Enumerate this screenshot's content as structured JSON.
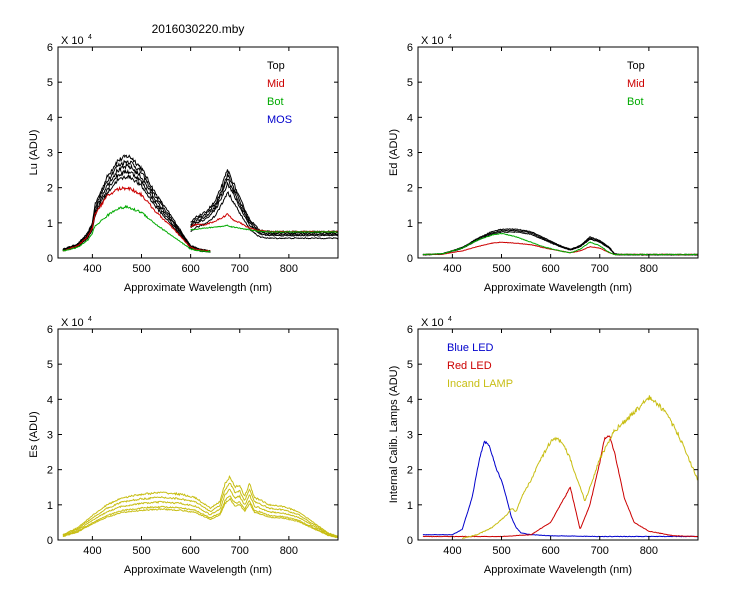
{
  "figure_title": "2016030220.mby",
  "chart_data": [
    {
      "type": "line",
      "ylabel": "Lu (ADU)",
      "xlabel": "Approximate Wavelength (nm)",
      "multiplier": "X 10",
      "exponent": "4",
      "xlim": [
        330,
        900
      ],
      "ylim": [
        0,
        6
      ],
      "xticks": [
        400,
        500,
        600,
        700,
        800
      ],
      "yticks": [
        0,
        1,
        2,
        3,
        4,
        5,
        6
      ],
      "legend": [
        {
          "label": "Top",
          "color": "#000000"
        },
        {
          "label": "Mid",
          "color": "#cc0000"
        },
        {
          "label": "Bot",
          "color": "#00aa00"
        },
        {
          "label": "MOS",
          "color": "#0000cc"
        }
      ],
      "series": [
        {
          "name": "Top",
          "color": "#000000",
          "jitter": 0.05,
          "x": [
            340,
            370,
            390,
            400,
            405,
            430,
            450,
            470,
            480,
            500,
            530,
            560,
            600,
            620,
            640
          ],
          "scales": [
            1.0,
            0.95,
            0.9,
            0.85,
            0.8
          ],
          "y": [
            0.25,
            0.4,
            0.7,
            1.0,
            1.5,
            2.3,
            2.75,
            2.9,
            2.85,
            2.55,
            1.8,
            1.2,
            0.35,
            0.25,
            0.2
          ]
        },
        {
          "name": "Top",
          "color": "#000000",
          "jitter": 0.05,
          "x": [
            600,
            610,
            630,
            650,
            665,
            675,
            685,
            700,
            720,
            740,
            760,
            800,
            850,
            900
          ],
          "scales": [
            1.0,
            0.95,
            0.9,
            0.85,
            0.75
          ],
          "y": [
            1.0,
            1.15,
            1.3,
            1.6,
            2.1,
            2.5,
            2.2,
            1.7,
            1.1,
            0.8,
            0.75,
            0.75,
            0.75,
            0.75
          ]
        },
        {
          "name": "Mid",
          "color": "#cc0000",
          "jitter": 0.05,
          "x": [
            340,
            370,
            390,
            400,
            405,
            430,
            450,
            470,
            480,
            500,
            530,
            560,
            600,
            620,
            640
          ],
          "y": [
            0.2,
            0.35,
            0.6,
            0.85,
            1.25,
            1.75,
            1.95,
            2.0,
            1.95,
            1.8,
            1.3,
            0.9,
            0.3,
            0.22,
            0.2
          ]
        },
        {
          "name": "Mid",
          "color": "#cc0000",
          "jitter": 0.04,
          "x": [
            600,
            610,
            630,
            650,
            665,
            675,
            685,
            700,
            720,
            740,
            760,
            800,
            850,
            900
          ],
          "y": [
            0.9,
            0.95,
            0.95,
            1.05,
            1.15,
            1.25,
            1.1,
            1.0,
            0.85,
            0.78,
            0.75,
            0.75,
            0.75,
            0.75
          ]
        },
        {
          "name": "Bot",
          "color": "#00aa00",
          "jitter": 0.05,
          "x": [
            340,
            370,
            390,
            400,
            405,
            430,
            450,
            470,
            480,
            500,
            530,
            560,
            600,
            620,
            640
          ],
          "y": [
            0.2,
            0.3,
            0.5,
            0.7,
            0.9,
            1.2,
            1.4,
            1.45,
            1.4,
            1.3,
            0.95,
            0.65,
            0.25,
            0.2,
            0.18
          ]
        },
        {
          "name": "Bot",
          "color": "#00aa00",
          "jitter": 0.03,
          "x": [
            600,
            610,
            630,
            650,
            665,
            675,
            685,
            700,
            720,
            740,
            760,
            800,
            850,
            900
          ],
          "y": [
            0.8,
            0.82,
            0.85,
            0.88,
            0.9,
            0.93,
            0.88,
            0.85,
            0.8,
            0.76,
            0.74,
            0.74,
            0.74,
            0.74
          ]
        }
      ]
    },
    {
      "type": "line",
      "ylabel": "Ed  (ADU)",
      "xlabel": "Approximate Wavelength (nm)",
      "multiplier": "X 10",
      "exponent": "4",
      "xlim": [
        330,
        900
      ],
      "ylim": [
        0,
        6
      ],
      "xticks": [
        400,
        500,
        600,
        700,
        800
      ],
      "yticks": [
        0,
        1,
        2,
        3,
        4,
        5,
        6
      ],
      "legend": [
        {
          "label": "Top",
          "color": "#000000"
        },
        {
          "label": "Mid",
          "color": "#cc0000"
        },
        {
          "label": "Bot",
          "color": "#00aa00"
        }
      ],
      "series": [
        {
          "name": "Top",
          "color": "#000000",
          "jitter": 0.03,
          "x": [
            340,
            380,
            420,
            450,
            480,
            500,
            530,
            560,
            590,
            620,
            640,
            660,
            680,
            700,
            720,
            730,
            740,
            800,
            900
          ],
          "scales": [
            1.0,
            0.95,
            0.9
          ],
          "y": [
            0.1,
            0.12,
            0.3,
            0.55,
            0.75,
            0.82,
            0.82,
            0.75,
            0.55,
            0.35,
            0.25,
            0.35,
            0.6,
            0.5,
            0.3,
            0.12,
            0.1,
            0.1,
            0.1
          ]
        },
        {
          "name": "Mid",
          "color": "#cc0000",
          "jitter": 0.02,
          "x": [
            340,
            380,
            420,
            450,
            480,
            500,
            530,
            560,
            590,
            620,
            640,
            660,
            680,
            700,
            720,
            730,
            740,
            800,
            900
          ],
          "y": [
            0.1,
            0.11,
            0.2,
            0.32,
            0.42,
            0.45,
            0.42,
            0.38,
            0.28,
            0.2,
            0.15,
            0.2,
            0.32,
            0.28,
            0.15,
            0.1,
            0.1,
            0.1,
            0.1
          ]
        },
        {
          "name": "Bot",
          "color": "#00aa00",
          "jitter": 0.03,
          "x": [
            340,
            380,
            420,
            450,
            480,
            500,
            530,
            560,
            590,
            620,
            640,
            660,
            680,
            700,
            720,
            730,
            740,
            800,
            900
          ],
          "y": [
            0.1,
            0.12,
            0.28,
            0.5,
            0.65,
            0.7,
            0.6,
            0.45,
            0.3,
            0.2,
            0.15,
            0.25,
            0.45,
            0.35,
            0.15,
            0.1,
            0.1,
            0.1,
            0.1
          ]
        }
      ]
    },
    {
      "type": "line",
      "ylabel": "Es  (ADU)",
      "xlabel": "Approximate Wavelength (nm)",
      "multiplier": "X 10",
      "exponent": "4",
      "xlim": [
        330,
        900
      ],
      "ylim": [
        0,
        6
      ],
      "xticks": [
        400,
        500,
        600,
        700,
        800
      ],
      "yticks": [
        0,
        1,
        2,
        3,
        4,
        5,
        6
      ],
      "legend": [],
      "series": [
        {
          "name": "Es",
          "color": "#c8be14",
          "jitter": 0.04,
          "x": [
            340,
            370,
            400,
            430,
            460,
            500,
            540,
            580,
            610,
            640,
            660,
            670,
            680,
            690,
            700,
            710,
            720,
            730,
            740,
            760,
            790,
            820,
            850,
            880,
            900
          ],
          "scales": [
            1.0,
            0.9,
            0.8,
            0.7,
            0.65
          ],
          "y": [
            0.15,
            0.35,
            0.7,
            1.0,
            1.2,
            1.3,
            1.35,
            1.3,
            1.2,
            0.9,
            1.1,
            1.6,
            1.8,
            1.5,
            1.55,
            1.25,
            1.6,
            1.2,
            1.15,
            1.0,
            0.95,
            0.8,
            0.5,
            0.2,
            0.1
          ]
        }
      ]
    },
    {
      "type": "line",
      "ylabel": "Internal Calib. Lamps (ADU)",
      "xlabel": "Approximate Wavelength (nm)",
      "multiplier": "X 10",
      "exponent": "4",
      "xlim": [
        330,
        900
      ],
      "ylim": [
        0,
        6
      ],
      "xticks": [
        400,
        500,
        600,
        700,
        800
      ],
      "yticks": [
        0,
        1,
        2,
        3,
        4,
        5,
        6
      ],
      "legend": [
        {
          "label": "Blue LED",
          "color": "#0000cc"
        },
        {
          "label": "Red LED",
          "color": "#cc0000"
        },
        {
          "label": "Incand LAMP",
          "color": "#c8be14"
        }
      ],
      "series": [
        {
          "name": "Blue LED",
          "color": "#0000cc",
          "jitter": 0.02,
          "x": [
            340,
            400,
            420,
            440,
            455,
            465,
            475,
            490,
            500,
            510,
            520,
            530,
            540,
            560,
            600,
            700,
            800,
            900
          ],
          "y": [
            0.15,
            0.15,
            0.3,
            1.2,
            2.3,
            2.8,
            2.7,
            2.0,
            1.7,
            1.2,
            0.65,
            0.35,
            0.2,
            0.15,
            0.12,
            0.1,
            0.1,
            0.1
          ]
        },
        {
          "name": "Red LED",
          "color": "#cc0000",
          "jitter": 0.02,
          "x": [
            340,
            500,
            560,
            600,
            620,
            640,
            660,
            680,
            700,
            710,
            720,
            730,
            750,
            770,
            800,
            850,
            900
          ],
          "y": [
            0.1,
            0.1,
            0.15,
            0.5,
            1.0,
            1.5,
            0.3,
            1.0,
            2.2,
            2.9,
            2.95,
            2.5,
            1.2,
            0.5,
            0.25,
            0.12,
            0.1
          ]
        },
        {
          "name": "Incand LAMP",
          "color": "#c8be14",
          "jitter": 0.04,
          "x": [
            420,
            450,
            480,
            510,
            520,
            530,
            540,
            560,
            580,
            600,
            610,
            620,
            630,
            640,
            670,
            700,
            730,
            760,
            790,
            800,
            810,
            830,
            860,
            900
          ],
          "y": [
            0.05,
            0.15,
            0.35,
            0.7,
            0.9,
            0.8,
            1.2,
            1.7,
            2.3,
            2.8,
            2.9,
            2.8,
            2.6,
            2.3,
            1.1,
            2.3,
            3.1,
            3.5,
            3.9,
            4.05,
            3.95,
            3.7,
            3.0,
            1.7
          ]
        }
      ]
    }
  ]
}
